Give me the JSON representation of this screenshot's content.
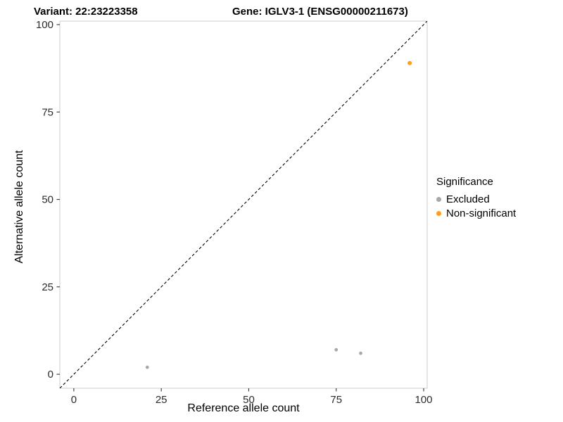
{
  "header": {
    "variant_title": "Variant: 22:23223358",
    "gene_title": "Gene: IGLV3-1 (ENSG00000211673)"
  },
  "chart_data": {
    "type": "scatter",
    "title_left": "Variant: 22:23223358",
    "title_right": "Gene: IGLV3-1 (ENSG00000211673)",
    "xlabel": "Reference allele count",
    "ylabel": "Alternative allele count",
    "xlim": [
      -4,
      101
    ],
    "ylim": [
      -4,
      101
    ],
    "xticks": [
      0,
      25,
      50,
      75,
      100
    ],
    "yticks": [
      0,
      25,
      50,
      75,
      100
    ],
    "grid": false,
    "panel_border_color": "#d6d6d6",
    "tick_color": "#333333",
    "identity_line": {
      "style": "dashed",
      "color": "#000000",
      "from": [
        -4,
        -4
      ],
      "to": [
        101,
        101
      ]
    },
    "series": [
      {
        "name": "Excluded",
        "color": "#a8a8a8",
        "point_radius": 2.4,
        "points": [
          [
            21,
            2
          ],
          [
            75,
            7
          ],
          [
            82,
            6
          ]
        ]
      },
      {
        "name": "Non-significant",
        "color": "#ff9e1b",
        "point_radius": 3,
        "points": [
          [
            96,
            89
          ]
        ]
      }
    ],
    "legend": {
      "title": "Significance",
      "position": "right"
    }
  }
}
